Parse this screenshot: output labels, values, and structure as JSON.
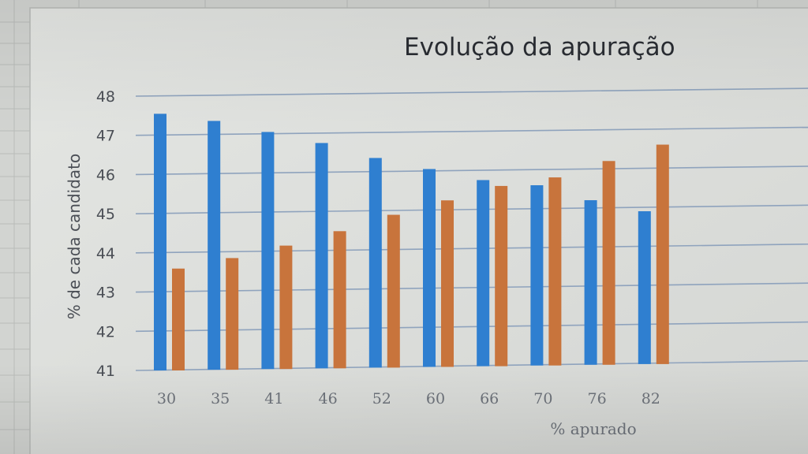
{
  "chart_data": {
    "type": "bar",
    "title": "Evolução da apuração",
    "xlabel": "% apurado",
    "ylabel": "% de cada candidato",
    "categories": [
      "30",
      "35",
      "41",
      "46",
      "52",
      "60",
      "66",
      "70",
      "76",
      "82"
    ],
    "yticks": [
      "41",
      "42",
      "43",
      "44",
      "45",
      "46",
      "47",
      "48"
    ],
    "ylim": [
      41,
      48
    ],
    "grid": true,
    "legend": "none",
    "series": [
      {
        "color": "#2f7fd0",
        "values": [
          47.55,
          47.35,
          47.05,
          46.75,
          46.35,
          46.05,
          45.75,
          45.6,
          45.2,
          44.9
        ]
      },
      {
        "color": "#c8743c",
        "values": [
          43.6,
          43.85,
          44.15,
          44.5,
          44.9,
          45.25,
          45.6,
          45.8,
          46.2,
          46.6
        ]
      }
    ]
  }
}
